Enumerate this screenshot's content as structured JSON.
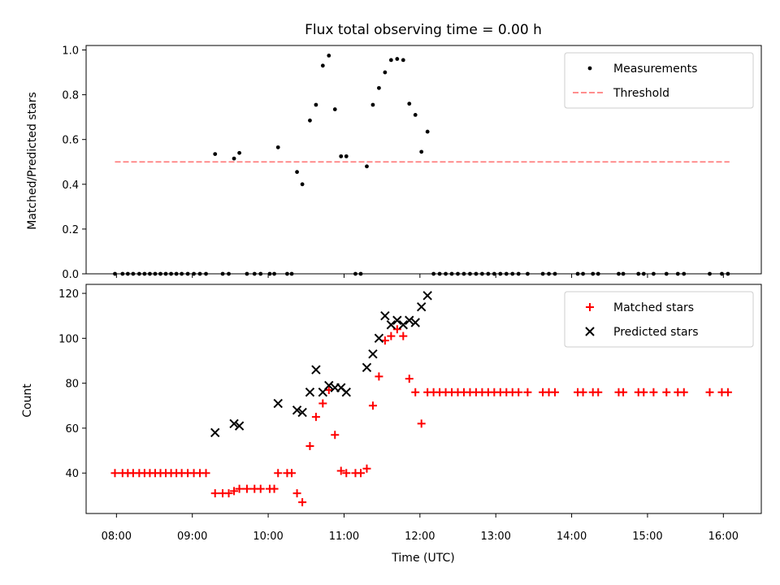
{
  "chart_data": {
    "title": "Flux total observing time = 0.00 h",
    "xlabel": "Time (UTC)",
    "x_ticks": [
      "08:00",
      "09:00",
      "10:00",
      "11:00",
      "12:00",
      "13:00",
      "14:00",
      "15:00",
      "16:00"
    ],
    "x_range_hours": [
      7.6,
      16.5
    ],
    "panels": [
      {
        "type": "scatter",
        "ylabel": "Matched/Predicted stars",
        "ylim": [
          0,
          1.02
        ],
        "yticks": [
          0.0,
          0.2,
          0.4,
          0.6,
          0.8,
          1.0
        ],
        "ytick_labels": [
          "0.0",
          "0.2",
          "0.4",
          "0.6",
          "0.8",
          "1.0"
        ],
        "legend": "top-right",
        "series": [
          {
            "name": "Measurements",
            "kind": "dot",
            "color": "#000000",
            "points": [
              [
                7.98,
                0
              ],
              [
                8.08,
                0
              ],
              [
                8.15,
                0
              ],
              [
                8.22,
                0
              ],
              [
                8.3,
                0
              ],
              [
                8.37,
                0
              ],
              [
                8.44,
                0
              ],
              [
                8.51,
                0
              ],
              [
                8.58,
                0
              ],
              [
                8.65,
                0
              ],
              [
                8.72,
                0
              ],
              [
                8.79,
                0
              ],
              [
                8.86,
                0
              ],
              [
                8.94,
                0
              ],
              [
                9.02,
                0
              ],
              [
                9.1,
                0
              ],
              [
                9.18,
                0
              ],
              [
                9.3,
                0.535
              ],
              [
                9.4,
                0
              ],
              [
                9.48,
                0
              ],
              [
                9.55,
                0.515
              ],
              [
                9.62,
                0.54
              ],
              [
                9.72,
                0
              ],
              [
                9.82,
                0
              ],
              [
                9.9,
                0
              ],
              [
                10.02,
                0
              ],
              [
                10.08,
                0
              ],
              [
                10.13,
                0.565
              ],
              [
                10.25,
                0
              ],
              [
                10.31,
                0
              ],
              [
                10.38,
                0.455
              ],
              [
                10.45,
                0.4
              ],
              [
                10.55,
                0.685
              ],
              [
                10.63,
                0.755
              ],
              [
                10.72,
                0.93
              ],
              [
                10.8,
                0.975
              ],
              [
                10.88,
                0.735
              ],
              [
                10.96,
                0.525
              ],
              [
                11.03,
                0.525
              ],
              [
                11.15,
                0
              ],
              [
                11.22,
                0
              ],
              [
                11.3,
                0.48
              ],
              [
                11.38,
                0.755
              ],
              [
                11.46,
                0.83
              ],
              [
                11.54,
                0.9
              ],
              [
                11.62,
                0.955
              ],
              [
                11.7,
                0.96
              ],
              [
                11.78,
                0.955
              ],
              [
                11.86,
                0.76
              ],
              [
                11.94,
                0.71
              ],
              [
                12.02,
                0.545
              ],
              [
                12.1,
                0.635
              ],
              [
                12.18,
                0
              ],
              [
                12.26,
                0
              ],
              [
                12.34,
                0
              ],
              [
                12.42,
                0
              ],
              [
                12.5,
                0
              ],
              [
                12.58,
                0
              ],
              [
                12.66,
                0
              ],
              [
                12.74,
                0
              ],
              [
                12.82,
                0
              ],
              [
                12.9,
                0
              ],
              [
                12.98,
                0
              ],
              [
                13.06,
                0
              ],
              [
                13.14,
                0
              ],
              [
                13.22,
                0
              ],
              [
                13.3,
                0
              ],
              [
                13.42,
                0
              ],
              [
                13.62,
                0
              ],
              [
                13.7,
                0
              ],
              [
                13.78,
                0
              ],
              [
                14.08,
                0
              ],
              [
                14.15,
                0
              ],
              [
                14.28,
                0
              ],
              [
                14.35,
                0
              ],
              [
                14.62,
                0
              ],
              [
                14.68,
                0
              ],
              [
                14.88,
                0
              ],
              [
                14.95,
                0
              ],
              [
                15.08,
                0
              ],
              [
                15.25,
                0
              ],
              [
                15.4,
                0
              ],
              [
                15.48,
                0
              ],
              [
                15.82,
                0
              ],
              [
                15.98,
                0
              ],
              [
                16.06,
                0
              ]
            ]
          },
          {
            "name": "Threshold",
            "kind": "dashed-line",
            "color": "#ff7f7f",
            "x": [
              7.98,
              16.08
            ],
            "y": [
              0.5,
              0.5
            ]
          }
        ]
      },
      {
        "type": "scatter",
        "ylabel": "Count",
        "ylim": [
          22,
          124
        ],
        "yticks": [
          40,
          60,
          80,
          100,
          120
        ],
        "ytick_labels": [
          "40",
          "60",
          "80",
          "100",
          "120"
        ],
        "legend": "top-right",
        "series": [
          {
            "name": "Matched stars",
            "kind": "plus",
            "color": "#ff0000",
            "points": [
              [
                7.98,
                40
              ],
              [
                8.08,
                40
              ],
              [
                8.15,
                40
              ],
              [
                8.22,
                40
              ],
              [
                8.3,
                40
              ],
              [
                8.37,
                40
              ],
              [
                8.44,
                40
              ],
              [
                8.51,
                40
              ],
              [
                8.58,
                40
              ],
              [
                8.65,
                40
              ],
              [
                8.72,
                40
              ],
              [
                8.79,
                40
              ],
              [
                8.86,
                40
              ],
              [
                8.94,
                40
              ],
              [
                9.02,
                40
              ],
              [
                9.1,
                40
              ],
              [
                9.18,
                40
              ],
              [
                9.3,
                31
              ],
              [
                9.4,
                31
              ],
              [
                9.48,
                31
              ],
              [
                9.55,
                32
              ],
              [
                9.62,
                33
              ],
              [
                9.72,
                33
              ],
              [
                9.82,
                33
              ],
              [
                9.9,
                33
              ],
              [
                10.02,
                33
              ],
              [
                10.08,
                33
              ],
              [
                10.13,
                40
              ],
              [
                10.25,
                40
              ],
              [
                10.31,
                40
              ],
              [
                10.38,
                31
              ],
              [
                10.45,
                27
              ],
              [
                10.55,
                52
              ],
              [
                10.63,
                65
              ],
              [
                10.72,
                71
              ],
              [
                10.8,
                77
              ],
              [
                10.88,
                57
              ],
              [
                10.96,
                41
              ],
              [
                11.03,
                40
              ],
              [
                11.15,
                40
              ],
              [
                11.22,
                40
              ],
              [
                11.3,
                42
              ],
              [
                11.38,
                70
              ],
              [
                11.46,
                83
              ],
              [
                11.54,
                99
              ],
              [
                11.62,
                101
              ],
              [
                11.7,
                104
              ],
              [
                11.78,
                101
              ],
              [
                11.86,
                82
              ],
              [
                11.94,
                76
              ],
              [
                12.02,
                62
              ],
              [
                12.1,
                76
              ],
              [
                12.18,
                76
              ],
              [
                12.26,
                76
              ],
              [
                12.34,
                76
              ],
              [
                12.42,
                76
              ],
              [
                12.5,
                76
              ],
              [
                12.58,
                76
              ],
              [
                12.66,
                76
              ],
              [
                12.74,
                76
              ],
              [
                12.82,
                76
              ],
              [
                12.9,
                76
              ],
              [
                12.98,
                76
              ],
              [
                13.06,
                76
              ],
              [
                13.14,
                76
              ],
              [
                13.22,
                76
              ],
              [
                13.3,
                76
              ],
              [
                13.42,
                76
              ],
              [
                13.62,
                76
              ],
              [
                13.7,
                76
              ],
              [
                13.78,
                76
              ],
              [
                14.08,
                76
              ],
              [
                14.15,
                76
              ],
              [
                14.28,
                76
              ],
              [
                14.35,
                76
              ],
              [
                14.62,
                76
              ],
              [
                14.68,
                76
              ],
              [
                14.88,
                76
              ],
              [
                14.95,
                76
              ],
              [
                15.08,
                76
              ],
              [
                15.25,
                76
              ],
              [
                15.4,
                76
              ],
              [
                15.48,
                76
              ],
              [
                15.82,
                76
              ],
              [
                15.98,
                76
              ],
              [
                16.06,
                76
              ]
            ]
          },
          {
            "name": "Predicted stars",
            "kind": "cross",
            "color": "#000000",
            "points": [
              [
                9.3,
                58
              ],
              [
                9.55,
                62
              ],
              [
                9.62,
                61
              ],
              [
                10.13,
                71
              ],
              [
                10.38,
                68
              ],
              [
                10.45,
                67
              ],
              [
                10.55,
                76
              ],
              [
                10.63,
                86
              ],
              [
                10.72,
                76
              ],
              [
                10.8,
                79
              ],
              [
                10.88,
                78
              ],
              [
                10.96,
                78
              ],
              [
                11.03,
                76
              ],
              [
                11.3,
                87
              ],
              [
                11.38,
                93
              ],
              [
                11.46,
                100
              ],
              [
                11.54,
                110
              ],
              [
                11.62,
                106
              ],
              [
                11.7,
                108
              ],
              [
                11.78,
                106
              ],
              [
                11.86,
                108
              ],
              [
                11.94,
                107
              ],
              [
                12.02,
                114
              ],
              [
                12.1,
                119
              ]
            ]
          }
        ]
      }
    ]
  }
}
